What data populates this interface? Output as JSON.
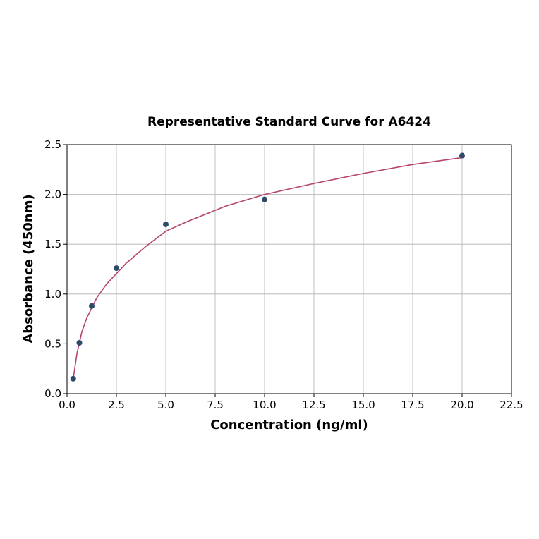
{
  "chart_data": {
    "type": "scatter",
    "title": "Representative Standard Curve for A6424",
    "xlabel": "Concentration (ng/ml)",
    "ylabel": "Absorbance (450nm)",
    "xlim": [
      0,
      22.5
    ],
    "ylim": [
      0,
      2.5
    ],
    "xticks": [
      "0.0",
      "2.5",
      "5.0",
      "7.5",
      "10.0",
      "12.5",
      "15.0",
      "17.5",
      "20.0",
      "22.5"
    ],
    "yticks": [
      "0.0",
      "0.5",
      "1.0",
      "1.5",
      "2.0",
      "2.5"
    ],
    "grid": true,
    "points": {
      "x": [
        0.3125,
        0.625,
        1.25,
        2.5,
        5,
        10,
        20
      ],
      "y": [
        0.15,
        0.51,
        0.88,
        1.26,
        1.7,
        1.95,
        2.39
      ]
    },
    "fit_curve": {
      "x": [
        0.3125,
        0.5,
        0.75,
        1,
        1.5,
        2,
        3,
        4,
        5,
        6,
        8,
        10,
        12.5,
        15,
        17.5,
        20
      ],
      "y": [
        0.15,
        0.4,
        0.62,
        0.76,
        0.96,
        1.1,
        1.31,
        1.48,
        1.63,
        1.72,
        1.88,
        2.0,
        2.11,
        2.21,
        2.3,
        2.37
      ]
    },
    "colors": {
      "points": "#2e4a6b",
      "curve": "#b5446e",
      "grid": "#b0b0b0"
    }
  }
}
